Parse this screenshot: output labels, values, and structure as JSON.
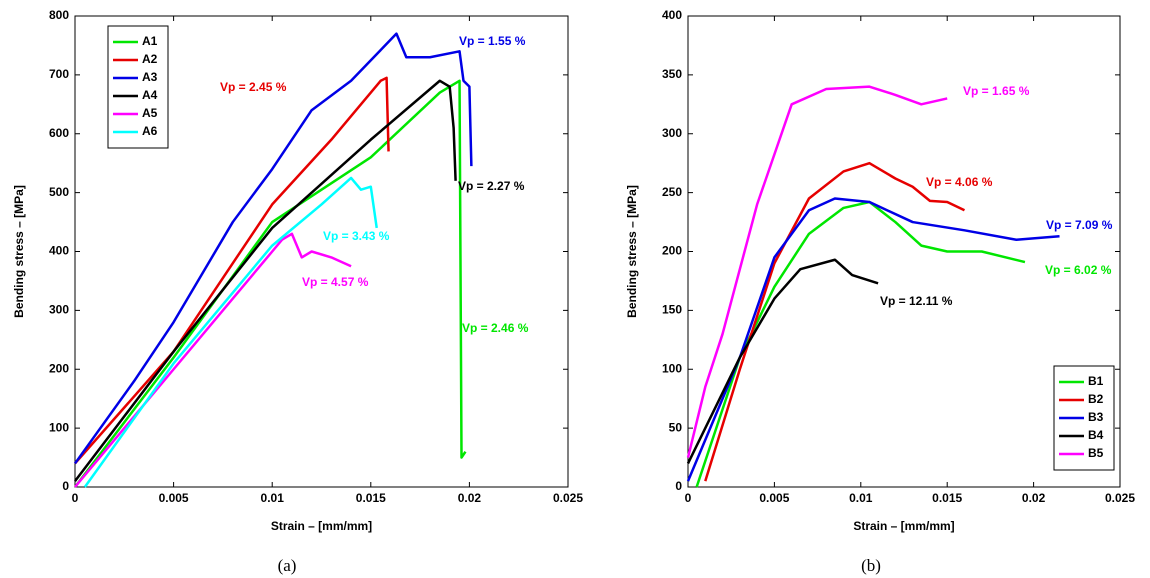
{
  "chart_data": [
    {
      "type": "line",
      "caption": "(a)",
      "x_label": "Strain – [mm/mm]",
      "y_label": "Bending stress – [MPa]",
      "xlim": [
        0,
        0.025
      ],
      "xticks": [
        0,
        0.005,
        0.01,
        0.015,
        0.02,
        0.025
      ],
      "ylim": [
        0,
        800
      ],
      "yticks": [
        0,
        100,
        200,
        300,
        400,
        500,
        600,
        700,
        800
      ],
      "legend": "upper left",
      "series": [
        {
          "name": "A1",
          "color": "#00e600",
          "annotation": "Vp = 2.46 %",
          "x": [
            0,
            0.005,
            0.01,
            0.015,
            0.0185,
            0.0195,
            0.0196,
            0.0198
          ],
          "values": [
            0,
            220,
            450,
            560,
            670,
            690,
            50,
            60
          ]
        },
        {
          "name": "A2",
          "color": "#e60000",
          "annotation": "Vp = 2.45 %",
          "x": [
            0,
            0.005,
            0.01,
            0.013,
            0.0155,
            0.0158,
            0.0159
          ],
          "values": [
            40,
            230,
            480,
            590,
            690,
            695,
            570
          ]
        },
        {
          "name": "A3",
          "color": "#0000e6",
          "annotation": "Vp = 1.55 %",
          "x": [
            0,
            0.003,
            0.005,
            0.008,
            0.01,
            0.012,
            0.014,
            0.0163,
            0.0168,
            0.018,
            0.0195,
            0.0197,
            0.02,
            0.0201
          ],
          "values": [
            40,
            180,
            280,
            450,
            540,
            640,
            690,
            770,
            730,
            730,
            740,
            690,
            680,
            545
          ]
        },
        {
          "name": "A4",
          "color": "#000000",
          "annotation": "Vp = 2.27 %",
          "x": [
            0,
            0.005,
            0.01,
            0.015,
            0.0185,
            0.019,
            0.0192,
            0.0193
          ],
          "values": [
            10,
            230,
            440,
            590,
            690,
            680,
            610,
            520
          ]
        },
        {
          "name": "A5",
          "color": "#ff00ff",
          "annotation": "Vp = 4.57 %",
          "x": [
            0,
            0.005,
            0.01,
            0.0105,
            0.011,
            0.0115,
            0.012,
            0.013,
            0.014
          ],
          "values": [
            0,
            200,
            400,
            420,
            430,
            390,
            400,
            390,
            375
          ]
        },
        {
          "name": "A6",
          "color": "#00ffff",
          "annotation": "Vp = 3.43 %",
          "x": [
            0.0005,
            0.005,
            0.01,
            0.0125,
            0.014,
            0.0145,
            0.015,
            0.0153
          ],
          "values": [
            0,
            210,
            410,
            480,
            525,
            505,
            510,
            440
          ]
        }
      ]
    },
    {
      "type": "line",
      "caption": "(b)",
      "x_label": "Strain – [mm/mm]",
      "y_label": "Bending stress – [MPa]",
      "xlim": [
        0,
        0.025
      ],
      "xticks": [
        0,
        0.005,
        0.01,
        0.015,
        0.02,
        0.025
      ],
      "ylim": [
        0,
        400
      ],
      "yticks": [
        0,
        50,
        100,
        150,
        200,
        250,
        300,
        350,
        400
      ],
      "legend": "lower right",
      "series": [
        {
          "name": "B1",
          "color": "#00e600",
          "annotation": "Vp = 6.02 %",
          "x": [
            0.0005,
            0.003,
            0.005,
            0.007,
            0.009,
            0.0105,
            0.012,
            0.0135,
            0.015,
            0.017,
            0.0195
          ],
          "values": [
            0,
            110,
            170,
            215,
            237,
            242,
            225,
            205,
            200,
            200,
            191
          ]
        },
        {
          "name": "B2",
          "color": "#e60000",
          "annotation": "Vp = 4.06 %",
          "x": [
            0.001,
            0.003,
            0.005,
            0.007,
            0.009,
            0.0105,
            0.012,
            0.013,
            0.014,
            0.015,
            0.016
          ],
          "values": [
            5,
            100,
            190,
            245,
            268,
            275,
            262,
            255,
            243,
            242,
            235
          ]
        },
        {
          "name": "B3",
          "color": "#0000e6",
          "annotation": "Vp = 7.09 %",
          "x": [
            0,
            0.003,
            0.005,
            0.007,
            0.0085,
            0.0105,
            0.013,
            0.016,
            0.019,
            0.0215
          ],
          "values": [
            5,
            110,
            195,
            235,
            245,
            242,
            225,
            218,
            210,
            213
          ]
        },
        {
          "name": "B4",
          "color": "#000000",
          "annotation": "Vp = 12.11 %",
          "x": [
            0,
            0.003,
            0.005,
            0.0065,
            0.0085,
            0.0095,
            0.011
          ],
          "values": [
            20,
            110,
            160,
            185,
            193,
            180,
            173
          ]
        },
        {
          "name": "B5",
          "color": "#ff00ff",
          "annotation": "Vp = 1.65 %",
          "x": [
            0,
            0.001,
            0.002,
            0.004,
            0.006,
            0.008,
            0.0105,
            0.012,
            0.0135,
            0.015
          ],
          "values": [
            25,
            85,
            130,
            240,
            325,
            338,
            340,
            333,
            325,
            330
          ]
        }
      ]
    }
  ]
}
